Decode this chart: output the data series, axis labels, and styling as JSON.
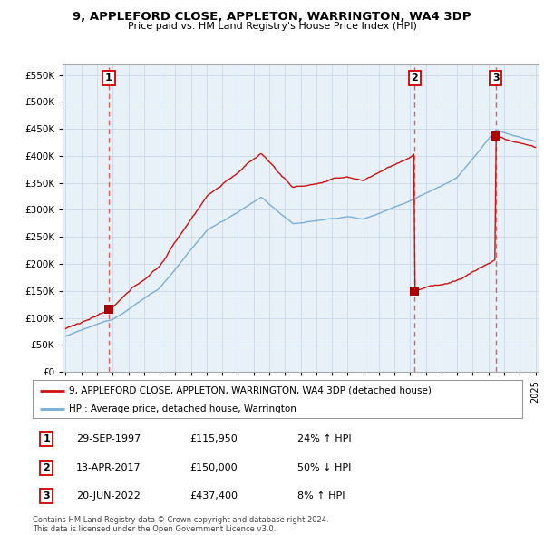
{
  "title": "9, APPLEFORD CLOSE, APPLETON, WARRINGTON, WA4 3DP",
  "subtitle": "Price paid vs. HM Land Registry's House Price Index (HPI)",
  "ylim": [
    0,
    570000
  ],
  "yticks": [
    0,
    50000,
    100000,
    150000,
    200000,
    250000,
    300000,
    350000,
    400000,
    450000,
    500000,
    550000
  ],
  "ytick_labels": [
    "£0",
    "£50K",
    "£100K",
    "£150K",
    "£200K",
    "£250K",
    "£300K",
    "£350K",
    "£400K",
    "£450K",
    "£500K",
    "£550K"
  ],
  "sales": [
    {
      "date_num": 1997.75,
      "price": 115950,
      "label": "1"
    },
    {
      "date_num": 2017.28,
      "price": 150000,
      "label": "2"
    },
    {
      "date_num": 2022.47,
      "price": 437400,
      "label": "3"
    }
  ],
  "vline_color": "#e06060",
  "sale_dot_color": "#aa0000",
  "hpi_line_color": "#7aaed6",
  "price_line_color": "#cc1111",
  "chart_bg_color": "#e8f0f8",
  "legend_label_price": "9, APPLEFORD CLOSE, APPLETON, WARRINGTON, WA4 3DP (detached house)",
  "legend_label_hpi": "HPI: Average price, detached house, Warrington",
  "table_rows": [
    {
      "num": "1",
      "date": "29-SEP-1997",
      "price": "£115,950",
      "pct": "24% ↑ HPI"
    },
    {
      "num": "2",
      "date": "13-APR-2017",
      "price": "£150,000",
      "pct": "50% ↓ HPI"
    },
    {
      "num": "3",
      "date": "20-JUN-2022",
      "price": "£437,400",
      "pct": "8% ↑ HPI"
    }
  ],
  "footer": "Contains HM Land Registry data © Crown copyright and database right 2024.\nThis data is licensed under the Open Government Licence v3.0.",
  "background_color": "#ffffff",
  "grid_color": "#c8d8e8"
}
